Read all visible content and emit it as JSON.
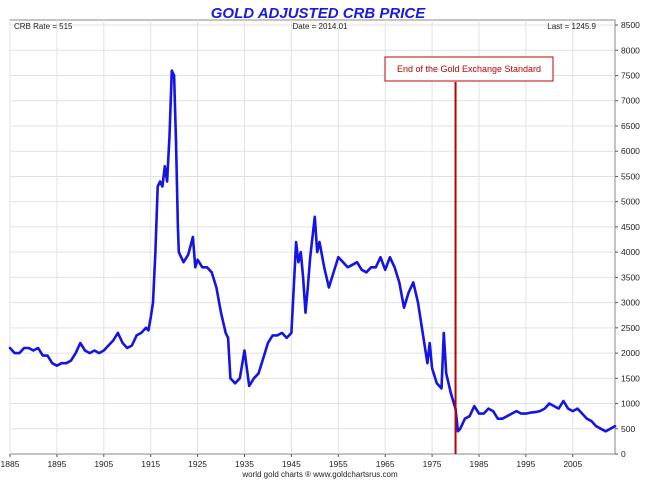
{
  "chart_data": {
    "type": "line",
    "title": "GOLD ADJUSTED CRB PRICE",
    "header": {
      "left": "CRB Rate = 515",
      "center": "Date = 2014.01",
      "right": "Last = 1245.9"
    },
    "footer": "world gold charts ® www.goldchartsrus.com",
    "xlim": [
      1885,
      2014
    ],
    "ylim": [
      0,
      8600
    ],
    "y_axis_side": "right",
    "x_ticks": [
      1885,
      1895,
      1905,
      1915,
      1925,
      1935,
      1945,
      1955,
      1965,
      1975,
      1985,
      1995,
      2005
    ],
    "x_tick_labels": [
      "1885",
      "1895",
      "1905",
      "1915",
      "1925",
      "1935",
      "1945",
      "1955",
      "1965",
      "1975",
      "1985",
      "1995",
      "2005"
    ],
    "y_ticks": [
      0,
      500,
      1000,
      1500,
      2000,
      2500,
      3000,
      3500,
      4000,
      4500,
      5000,
      5500,
      6000,
      6500,
      7000,
      7500,
      8000,
      8500
    ],
    "y_tick_labels": [
      "0",
      "500",
      "1000",
      "1500",
      "2000",
      "2500",
      "3000",
      "3500",
      "4000",
      "4500",
      "5000",
      "5500",
      "6000",
      "6500",
      "7000",
      "7500",
      "8000",
      "8500"
    ],
    "grid": true,
    "series": [
      {
        "color": "#1414e6",
        "points": [
          [
            1885,
            2100
          ],
          [
            1886,
            2000
          ],
          [
            1887,
            2000
          ],
          [
            1888,
            2100
          ],
          [
            1889,
            2100
          ],
          [
            1890,
            2050
          ],
          [
            1891,
            2100
          ],
          [
            1892,
            1950
          ],
          [
            1893,
            1950
          ],
          [
            1894,
            1800
          ],
          [
            1895,
            1750
          ],
          [
            1896,
            1800
          ],
          [
            1897,
            1800
          ],
          [
            1898,
            1850
          ],
          [
            1899,
            2000
          ],
          [
            1900,
            2200
          ],
          [
            1901,
            2050
          ],
          [
            1902,
            2000
          ],
          [
            1903,
            2050
          ],
          [
            1904,
            2000
          ],
          [
            1905,
            2050
          ],
          [
            1906,
            2150
          ],
          [
            1907,
            2250
          ],
          [
            1908,
            2400
          ],
          [
            1909,
            2200
          ],
          [
            1910,
            2100
          ],
          [
            1911,
            2150
          ],
          [
            1912,
            2350
          ],
          [
            1913,
            2400
          ],
          [
            1914,
            2500
          ],
          [
            1914.5,
            2450
          ],
          [
            1915,
            2700
          ],
          [
            1915.5,
            3000
          ],
          [
            1916,
            4000
          ],
          [
            1916.5,
            5300
          ],
          [
            1917,
            5400
          ],
          [
            1917.5,
            5300
          ],
          [
            1918,
            5700
          ],
          [
            1918.5,
            5400
          ],
          [
            1919,
            6300
          ],
          [
            1919.5,
            7600
          ],
          [
            1920,
            7500
          ],
          [
            1920.4,
            6200
          ],
          [
            1920.8,
            4500
          ],
          [
            1921,
            4000
          ],
          [
            1922,
            3800
          ],
          [
            1923,
            3950
          ],
          [
            1924,
            4300
          ],
          [
            1924.5,
            3700
          ],
          [
            1925,
            3850
          ],
          [
            1926,
            3700
          ],
          [
            1927,
            3700
          ],
          [
            1928,
            3600
          ],
          [
            1929,
            3300
          ],
          [
            1930,
            2800
          ],
          [
            1931,
            2400
          ],
          [
            1931.5,
            2300
          ],
          [
            1932,
            1500
          ],
          [
            1933,
            1400
          ],
          [
            1934,
            1500
          ],
          [
            1935,
            2050
          ],
          [
            1935.5,
            1700
          ],
          [
            1936,
            1350
          ],
          [
            1937,
            1500
          ],
          [
            1938,
            1600
          ],
          [
            1939,
            1900
          ],
          [
            1940,
            2200
          ],
          [
            1941,
            2350
          ],
          [
            1942,
            2350
          ],
          [
            1943,
            2400
          ],
          [
            1944,
            2300
          ],
          [
            1945,
            2400
          ],
          [
            1946,
            4200
          ],
          [
            1946.5,
            3800
          ],
          [
            1947,
            4000
          ],
          [
            1947.5,
            3500
          ],
          [
            1948,
            2800
          ],
          [
            1948.5,
            3300
          ],
          [
            1949,
            3900
          ],
          [
            1950,
            4700
          ],
          [
            1950.5,
            4000
          ],
          [
            1951,
            4200
          ],
          [
            1952,
            3700
          ],
          [
            1953,
            3300
          ],
          [
            1954,
            3600
          ],
          [
            1955,
            3900
          ],
          [
            1956,
            3800
          ],
          [
            1957,
            3700
          ],
          [
            1958,
            3750
          ],
          [
            1959,
            3800
          ],
          [
            1960,
            3650
          ],
          [
            1961,
            3600
          ],
          [
            1962,
            3700
          ],
          [
            1963,
            3700
          ],
          [
            1964,
            3900
          ],
          [
            1965,
            3650
          ],
          [
            1966,
            3900
          ],
          [
            1967,
            3700
          ],
          [
            1968,
            3400
          ],
          [
            1969,
            2900
          ],
          [
            1970,
            3200
          ],
          [
            1971,
            3400
          ],
          [
            1972,
            3000
          ],
          [
            1973,
            2400
          ],
          [
            1974,
            1800
          ],
          [
            1974.5,
            2200
          ],
          [
            1975,
            1700
          ],
          [
            1976,
            1400
          ],
          [
            1977,
            1300
          ],
          [
            1977.5,
            2400
          ],
          [
            1978,
            1600
          ],
          [
            1979,
            1200
          ],
          [
            1980,
            900
          ],
          [
            1980.5,
            450
          ],
          [
            1981,
            500
          ],
          [
            1982,
            700
          ],
          [
            1983,
            750
          ],
          [
            1984,
            950
          ],
          [
            1985,
            800
          ],
          [
            1986,
            800
          ],
          [
            1987,
            900
          ],
          [
            1988,
            850
          ],
          [
            1989,
            700
          ],
          [
            1990,
            700
          ],
          [
            1991,
            750
          ],
          [
            1992,
            800
          ],
          [
            1993,
            850
          ],
          [
            1994,
            800
          ],
          [
            1995,
            800
          ],
          [
            1996,
            820
          ],
          [
            1997,
            830
          ],
          [
            1998,
            850
          ],
          [
            1999,
            900
          ],
          [
            2000,
            1000
          ],
          [
            2001,
            950
          ],
          [
            2002,
            900
          ],
          [
            2003,
            1050
          ],
          [
            2004,
            900
          ],
          [
            2005,
            850
          ],
          [
            2006,
            900
          ],
          [
            2007,
            800
          ],
          [
            2008,
            700
          ],
          [
            2009,
            650
          ],
          [
            2010,
            550
          ],
          [
            2011,
            500
          ],
          [
            2012,
            450
          ],
          [
            2013,
            500
          ],
          [
            2014,
            550
          ]
        ]
      }
    ],
    "annotations": [
      {
        "type": "vline",
        "x": 1980,
        "color": "#c00000"
      },
      {
        "type": "label",
        "text": "End of the Gold Exchange Standard",
        "color": "#c00000",
        "border": "#c00000"
      }
    ]
  }
}
